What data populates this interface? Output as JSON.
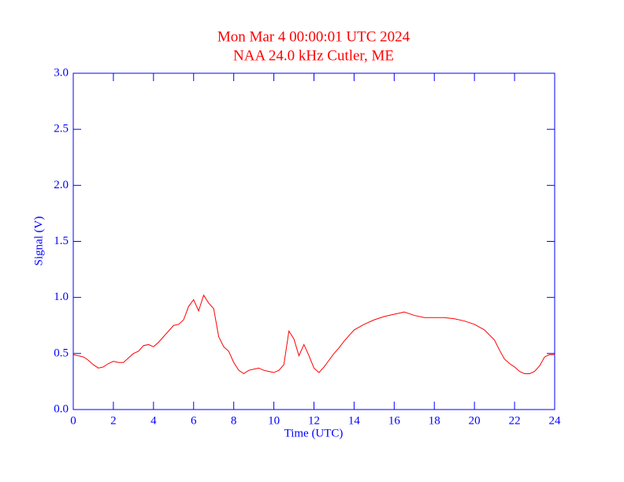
{
  "chart_data": {
    "type": "line",
    "title": "Mon Mar 4 00:00:01 UTC 2024",
    "subtitle": "NAA 24.0 kHz Cutler, ME",
    "x_label": "Time (UTC)",
    "y_label": "Signal (V)",
    "xlim": [
      0,
      24
    ],
    "xticks": [
      0,
      2,
      4,
      6,
      8,
      10,
      12,
      14,
      16,
      18,
      20,
      22,
      24
    ],
    "ylim": [
      0,
      3
    ],
    "yticks": [
      {
        "value": 0,
        "label": "0.0"
      },
      0.5,
      {
        "value": 1,
        "label": "1.0"
      },
      1.5,
      {
        "value": 2,
        "label": "2.0"
      },
      2.5,
      {
        "value": 3,
        "label": "3.0"
      }
    ],
    "axis_color": "#0000ff",
    "title_color": "#ff0000",
    "series": [
      {
        "color": "#ff0000",
        "x": [
          0,
          0.25,
          0.5,
          0.75,
          1,
          1.25,
          1.5,
          1.75,
          2,
          2.25,
          2.5,
          2.75,
          3,
          3.25,
          3.5,
          3.75,
          4,
          4.25,
          4.5,
          4.75,
          5,
          5.25,
          5.5,
          5.75,
          6,
          6.25,
          6.5,
          6.75,
          7,
          7.25,
          7.5,
          7.75,
          8,
          8.25,
          8.5,
          8.75,
          9,
          9.25,
          9.5,
          9.75,
          10,
          10.25,
          10.5,
          10.75,
          11,
          11.25,
          11.5,
          11.75,
          12,
          12.25,
          12.5,
          12.75,
          13,
          13.25,
          13.5,
          13.75,
          14,
          14.5,
          15,
          15.5,
          16,
          16.5,
          17,
          17.5,
          18,
          18.5,
          19,
          19.5,
          20,
          20.5,
          21,
          21.25,
          21.5,
          21.75,
          22,
          22.25,
          22.5,
          22.75,
          23,
          23.25,
          23.5,
          23.75,
          24
        ],
        "values": [
          0.49,
          0.48,
          0.47,
          0.44,
          0.4,
          0.37,
          0.38,
          0.41,
          0.43,
          0.42,
          0.42,
          0.46,
          0.5,
          0.52,
          0.57,
          0.58,
          0.56,
          0.6,
          0.65,
          0.7,
          0.75,
          0.76,
          0.8,
          0.92,
          0.98,
          0.88,
          1.02,
          0.95,
          0.9,
          0.65,
          0.56,
          0.52,
          0.42,
          0.35,
          0.32,
          0.35,
          0.36,
          0.37,
          0.35,
          0.34,
          0.33,
          0.35,
          0.4,
          0.7,
          0.63,
          0.48,
          0.58,
          0.48,
          0.37,
          0.33,
          0.38,
          0.44,
          0.5,
          0.55,
          0.61,
          0.66,
          0.71,
          0.76,
          0.8,
          0.83,
          0.85,
          0.87,
          0.84,
          0.82,
          0.82,
          0.82,
          0.81,
          0.79,
          0.76,
          0.71,
          0.62,
          0.53,
          0.45,
          0.41,
          0.38,
          0.34,
          0.32,
          0.32,
          0.34,
          0.39,
          0.47,
          0.49,
          0.49
        ]
      }
    ]
  }
}
